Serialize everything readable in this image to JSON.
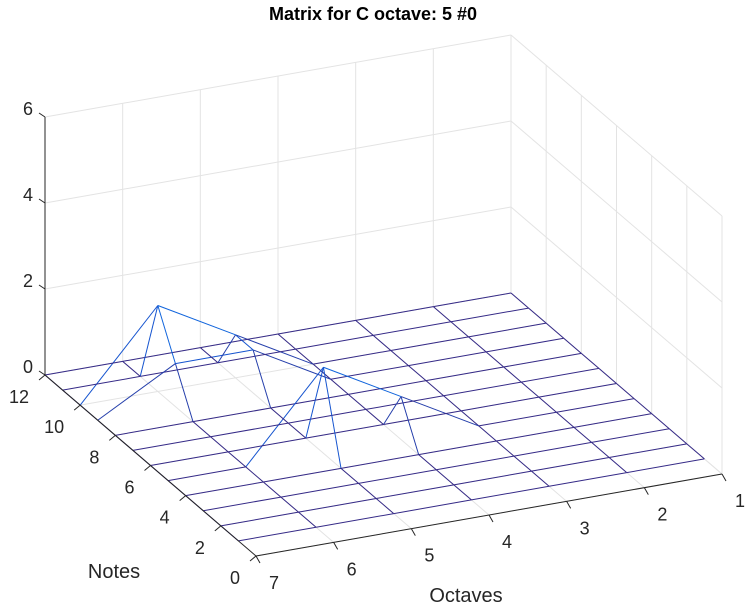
{
  "chart_data": {
    "type": "mesh3d",
    "title": "Matrix for C octave: 5 #0",
    "xlabel": "Octaves",
    "ylabel": "Notes",
    "zlabel": "",
    "xlim": [
      1,
      7
    ],
    "ylim": [
      0,
      12
    ],
    "zlim": [
      0,
      6
    ],
    "x_ticks": [
      "1",
      "2",
      "3",
      "4",
      "5",
      "6",
      "7"
    ],
    "y_ticks": [
      "0",
      "2",
      "4",
      "6",
      "8",
      "10",
      "12"
    ],
    "z_ticks": [
      "0",
      "2",
      "4",
      "6"
    ],
    "grid": true,
    "colormap": "parula",
    "octaves": [
      1,
      2,
      3,
      4,
      5,
      6,
      7
    ],
    "notes": [
      1,
      2,
      3,
      4,
      5,
      6,
      7,
      8,
      9,
      10,
      11,
      12
    ],
    "z": [
      [
        0,
        0,
        0,
        0,
        0,
        0,
        0,
        0,
        0,
        0,
        0,
        0
      ],
      [
        0,
        0,
        0,
        0,
        0,
        0,
        0,
        0,
        0,
        0,
        0,
        0
      ],
      [
        0,
        0,
        0,
        0,
        0,
        0,
        0,
        0,
        0,
        0,
        0,
        0
      ],
      [
        0,
        0,
        0,
        0,
        1,
        0,
        0,
        0,
        0,
        0,
        0,
        0
      ],
      [
        0,
        0,
        0,
        0,
        2,
        0,
        0,
        0,
        1,
        1,
        0,
        0
      ],
      [
        0,
        0,
        0,
        0,
        0,
        0,
        0,
        0,
        1,
        2,
        0,
        0
      ],
      [
        0,
        0,
        0,
        0,
        0,
        0,
        0,
        0,
        0,
        0,
        0,
        0
      ]
    ]
  }
}
